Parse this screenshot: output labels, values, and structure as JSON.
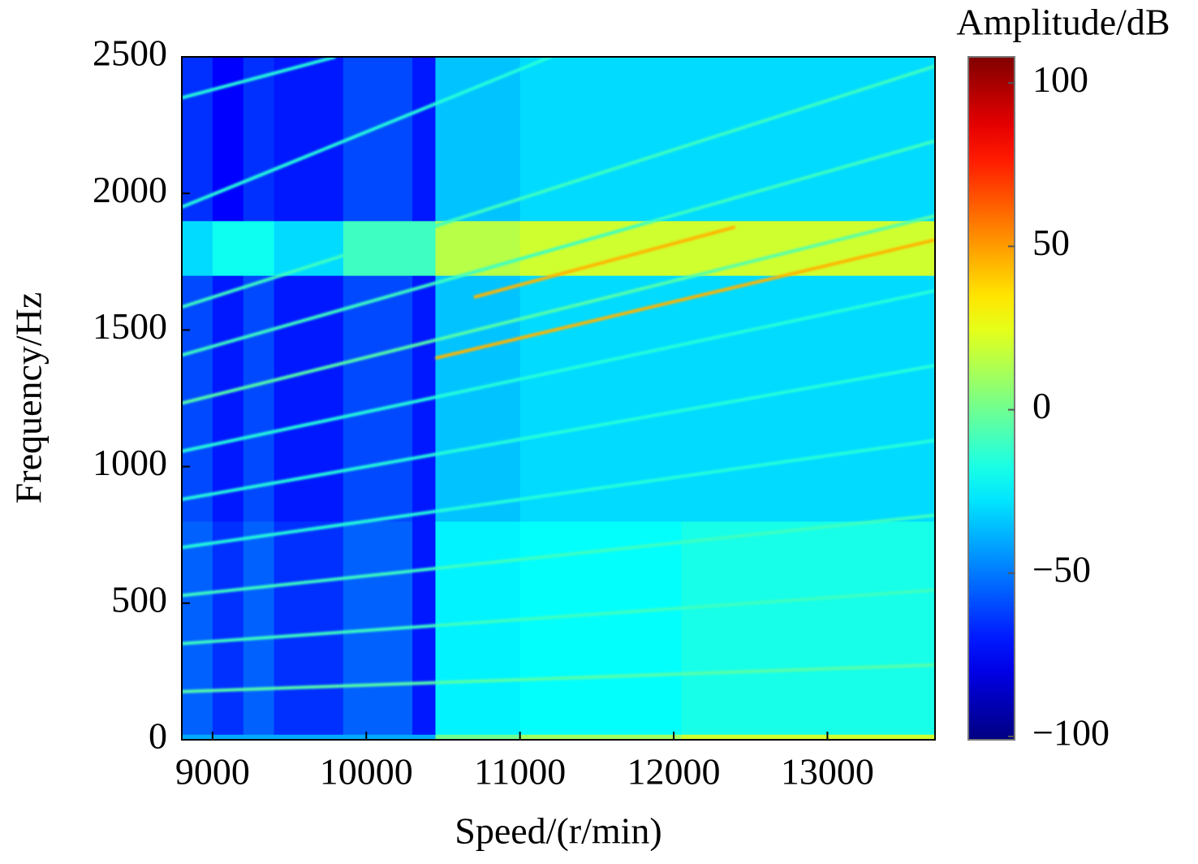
{
  "chart_data": {
    "type": "heatmap",
    "xlabel": "Speed/(r/min)",
    "ylabel": "Frequency/Hz",
    "colorbar_label": "Amplitude/dB",
    "xlim": [
      8800,
      13700
    ],
    "xticks": [
      9000,
      10000,
      11000,
      12000,
      13000
    ],
    "ylim": [
      0,
      2500
    ],
    "yticks": [
      0,
      500,
      1000,
      1500,
      2000,
      2500
    ],
    "zlim": [
      -101,
      108
    ],
    "zticks": [
      {
        "value": -100,
        "label": "−100"
      },
      {
        "value": -50,
        "label": "−50"
      },
      0,
      50,
      100
    ],
    "colormap": "jet",
    "x_edges": [
      8800,
      9000,
      9200,
      9400,
      9850,
      10300,
      10450,
      11000,
      12050,
      13700
    ],
    "y_edges": [
      0,
      20,
      800,
      1700,
      1900,
      2500
    ],
    "z": [
      [
        -40,
        -40,
        -40,
        -40,
        -40,
        -40,
        0,
        10,
        20
      ],
      [
        -55,
        -65,
        -55,
        -65,
        -55,
        -70,
        -25,
        -22,
        -18
      ],
      [
        -60,
        -70,
        -60,
        -70,
        -60,
        -70,
        -35,
        -30,
        -30
      ],
      [
        -30,
        -20,
        -20,
        -30,
        -10,
        -10,
        15,
        20,
        20
      ],
      [
        -65,
        -75,
        -65,
        -70,
        -60,
        -70,
        -35,
        -30,
        -30
      ]
    ],
    "ridges": [
      {
        "x": [
          10450,
          13700
        ],
        "y": [
          1397,
          1830
        ],
        "z": 45
      },
      {
        "x": [
          10700,
          12400
        ],
        "y": [
          1620,
          1877
        ],
        "z": 45
      },
      {
        "x": [
          8800,
          13700
        ],
        "y": [
          1584,
          2466
        ],
        "z": -10
      },
      {
        "x": [
          8800,
          13700
        ],
        "y": [
          1408,
          2192
        ],
        "z": -10
      },
      {
        "x": [
          8800,
          13700
        ],
        "y": [
          1232,
          1918
        ],
        "z": -5
      },
      {
        "x": [
          8800,
          13700
        ],
        "y": [
          1056,
          1644
        ],
        "z": -15
      },
      {
        "x": [
          8800,
          13700
        ],
        "y": [
          880,
          1370
        ],
        "z": -15
      },
      {
        "x": [
          8800,
          13700
        ],
        "y": [
          704,
          1096
        ],
        "z": -15
      },
      {
        "x": [
          8800,
          13700
        ],
        "y": [
          528,
          822
        ],
        "z": -10
      },
      {
        "x": [
          8800,
          13700
        ],
        "y": [
          352,
          548
        ],
        "z": -10
      },
      {
        "x": [
          8800,
          13700
        ],
        "y": [
          176,
          274
        ],
        "z": -5
      },
      {
        "x": [
          8800,
          9800
        ],
        "y": [
          2350,
          2500
        ],
        "z": -15
      },
      {
        "x": [
          8800,
          11200
        ],
        "y": [
          1950,
          2500
        ],
        "z": -15
      }
    ]
  }
}
